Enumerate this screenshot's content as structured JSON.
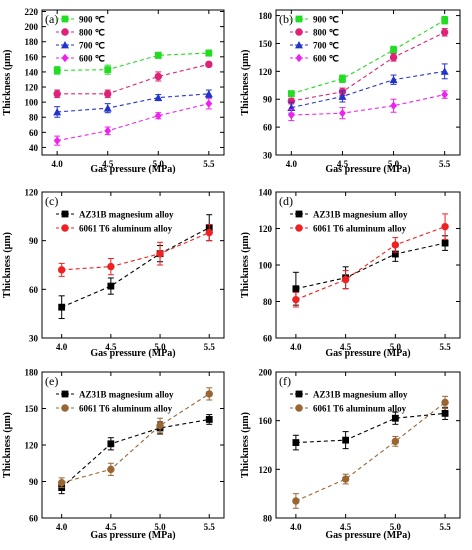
{
  "chart_data": [
    {
      "panel_label": "(a)",
      "type": "line",
      "x": [
        4.0,
        4.5,
        5.0,
        5.5
      ],
      "xlabel": "Gas pressure (MPa)",
      "ylabel": "Thickness (μm)",
      "xlim": [
        3.85,
        5.65
      ],
      "ylim": [
        30,
        222
      ],
      "xticks": [
        "4.0",
        "4.5",
        "5.0",
        "5.5"
      ],
      "yticks": [
        40,
        60,
        80,
        100,
        120,
        140,
        160,
        180,
        200,
        220
      ],
      "legend_position": "top-left",
      "series": [
        {
          "name": "900 ℃",
          "color": "#22dd22",
          "marker": "square",
          "values": [
            142,
            143,
            162,
            165
          ],
          "errors": [
            5,
            6,
            4,
            4
          ]
        },
        {
          "name": "800 ℃",
          "color": "#dd2277",
          "marker": "circle",
          "values": [
            111,
            111,
            134,
            150
          ],
          "errors": [
            5,
            5,
            6,
            3
          ]
        },
        {
          "name": "700 ℃",
          "color": "#2233cc",
          "marker": "triangle",
          "values": [
            87,
            92,
            106,
            111
          ],
          "errors": [
            7,
            6,
            4,
            5
          ]
        },
        {
          "name": "600 ℃",
          "color": "#ee22ee",
          "marker": "diamond",
          "values": [
            49,
            62,
            82,
            98
          ],
          "errors": [
            6,
            5,
            4,
            7
          ]
        }
      ]
    },
    {
      "panel_label": "(b)",
      "type": "line",
      "x": [
        4.0,
        4.5,
        5.0,
        5.5
      ],
      "xlabel": "Gas pressure (MPa)",
      "ylabel": "Thickness (μm)",
      "xlim": [
        3.85,
        5.65
      ],
      "ylim": [
        30,
        186
      ],
      "xticks": [
        "4.0",
        "4.5",
        "5.0",
        "5.5"
      ],
      "yticks": [
        30,
        60,
        90,
        120,
        150,
        180
      ],
      "legend_position": "top-left",
      "series": [
        {
          "name": "900 ℃",
          "color": "#22dd22",
          "marker": "square",
          "values": [
            96,
            112,
            143,
            175
          ],
          "errors": [
            3,
            4,
            4,
            4
          ]
        },
        {
          "name": "800 ℃",
          "color": "#dd2277",
          "marker": "circle",
          "values": [
            88,
            98,
            135,
            162
          ],
          "errors": [
            3,
            4,
            4,
            4
          ]
        },
        {
          "name": "700 ℃",
          "color": "#2233cc",
          "marker": "triangle",
          "values": [
            81,
            93,
            111,
            120
          ],
          "errors": [
            6,
            6,
            5,
            8
          ]
        },
        {
          "name": "600 ℃",
          "color": "#ee22ee",
          "marker": "diamond",
          "values": [
            73,
            75,
            83,
            95
          ],
          "errors": [
            6,
            6,
            7,
            4
          ]
        }
      ]
    },
    {
      "panel_label": "(c)",
      "type": "line",
      "x": [
        4.0,
        4.5,
        5.0,
        5.5
      ],
      "xlabel": "Gas pressure (MPa)",
      "ylabel": "Thickness (μm)",
      "xlim": [
        3.8,
        5.65
      ],
      "ylim": [
        30,
        120
      ],
      "xticks": [
        "4.0",
        "4.5",
        "5.0",
        "5.5"
      ],
      "yticks": [
        30,
        60,
        90,
        120
      ],
      "legend_position": "top-left",
      "series": [
        {
          "name": "AZ31B magnesium alloy",
          "color": "#000000",
          "marker": "square",
          "values": [
            49,
            62,
            82,
            98
          ],
          "errors": [
            7,
            5,
            5,
            8
          ]
        },
        {
          "name": "6061 T6 aluminum alloy",
          "color": "#ee2222",
          "marker": "circle",
          "values": [
            72,
            74,
            82,
            95
          ],
          "errors": [
            4,
            5,
            7,
            5
          ]
        }
      ]
    },
    {
      "panel_label": "(d)",
      "type": "line",
      "x": [
        4.0,
        4.5,
        5.0,
        5.5
      ],
      "xlabel": "Gas pressure (MPa)",
      "ylabel": "Thickness (μm)",
      "xlim": [
        3.8,
        5.65
      ],
      "ylim": [
        60,
        140
      ],
      "xticks": [
        "4.0",
        "4.5",
        "5.0",
        "5.5"
      ],
      "yticks": [
        60,
        80,
        100,
        120,
        140
      ],
      "legend_position": "top-left",
      "series": [
        {
          "name": "AZ31B magnesium alloy",
          "color": "#000000",
          "marker": "square",
          "values": [
            87,
            93,
            106,
            112
          ],
          "errors": [
            9,
            6,
            4,
            4
          ]
        },
        {
          "name": "6061 T6 aluminum alloy",
          "color": "#ee2222",
          "marker": "circle",
          "values": [
            81,
            92,
            111,
            121
          ],
          "errors": [
            4,
            5,
            4,
            7
          ]
        }
      ]
    },
    {
      "panel_label": "(e)",
      "type": "line",
      "x": [
        4.0,
        4.5,
        5.0,
        5.5
      ],
      "xlabel": "Gas pressure (MPa)",
      "ylabel": "Thickness (μm)",
      "xlim": [
        3.8,
        5.65
      ],
      "ylim": [
        60,
        180
      ],
      "xticks": [
        "4.0",
        "4.5",
        "5.0",
        "5.5"
      ],
      "yticks": [
        60,
        90,
        120,
        150,
        180
      ],
      "legend_position": "top-left",
      "series": [
        {
          "name": "AZ31B magnesium alloy",
          "color": "#000000",
          "marker": "square",
          "values": [
            85,
            121,
            134,
            141
          ],
          "errors": [
            5,
            5,
            5,
            4
          ]
        },
        {
          "name": "6061 T6 aluminum alloy",
          "color": "#996633",
          "marker": "circle",
          "values": [
            89,
            100,
            136,
            162
          ],
          "errors": [
            4,
            5,
            6,
            5
          ]
        }
      ]
    },
    {
      "panel_label": "(f)",
      "type": "line",
      "x": [
        4.0,
        4.5,
        5.0,
        5.5
      ],
      "xlabel": "Gas pressure (MPa)",
      "ylabel": "Thickness (μm)",
      "xlim": [
        3.8,
        5.65
      ],
      "ylim": [
        80,
        200
      ],
      "xticks": [
        "4.0",
        "4.5",
        "5.0",
        "5.5"
      ],
      "yticks": [
        80,
        120,
        160,
        200
      ],
      "legend_position": "top-left",
      "series": [
        {
          "name": "AZ31B magnesium alloy",
          "color": "#000000",
          "marker": "square",
          "values": [
            142,
            144,
            162,
            166
          ],
          "errors": [
            6,
            7,
            5,
            5
          ]
        },
        {
          "name": "6061 T6 aluminum alloy",
          "color": "#996633",
          "marker": "circle",
          "values": [
            94,
            112,
            143,
            175
          ],
          "errors": [
            6,
            4,
            4,
            5
          ]
        }
      ]
    }
  ]
}
